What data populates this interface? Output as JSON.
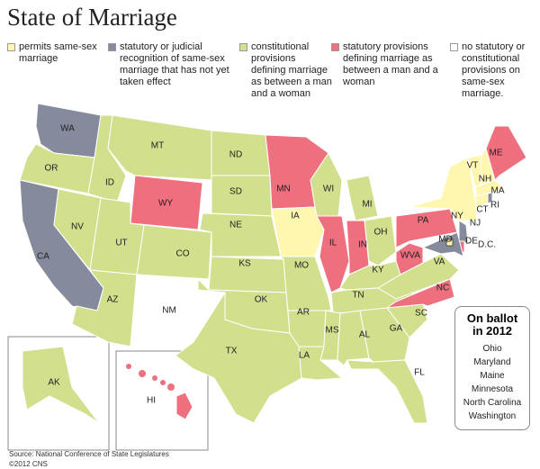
{
  "title": "State of Marriage",
  "legend": [
    {
      "label": "permits same-sex marriage",
      "color": "#fff6b0"
    },
    {
      "label": "statutory or judicial recognition of same-sex marriage that has not yet taken effect",
      "color": "#858b9c"
    },
    {
      "label": "constitutional provisions defining marriage as between a man and a woman",
      "color": "#d2e08d"
    },
    {
      "label": "statutory provisions defining marriage as between a man and a woman",
      "color": "#ee6f7d"
    },
    {
      "label": "no statutory or constitutional provisions on same-sex marriage.",
      "color": "#ffffff"
    }
  ],
  "states": [
    {
      "abbr": "WA",
      "category": 1
    },
    {
      "abbr": "OR",
      "category": 2
    },
    {
      "abbr": "CA",
      "category": 1
    },
    {
      "abbr": "NV",
      "category": 2
    },
    {
      "abbr": "ID",
      "category": 2
    },
    {
      "abbr": "MT",
      "category": 2
    },
    {
      "abbr": "WY",
      "category": 3
    },
    {
      "abbr": "UT",
      "category": 2
    },
    {
      "abbr": "CO",
      "category": 2
    },
    {
      "abbr": "AZ",
      "category": 2
    },
    {
      "abbr": "NM",
      "category": 4
    },
    {
      "abbr": "ND",
      "category": 2
    },
    {
      "abbr": "SD",
      "category": 2
    },
    {
      "abbr": "NE",
      "category": 2
    },
    {
      "abbr": "KS",
      "category": 2
    },
    {
      "abbr": "OK",
      "category": 2
    },
    {
      "abbr": "TX",
      "category": 2
    },
    {
      "abbr": "MN",
      "category": 3
    },
    {
      "abbr": "IA",
      "category": 0
    },
    {
      "abbr": "MO",
      "category": 2
    },
    {
      "abbr": "AR",
      "category": 2
    },
    {
      "abbr": "LA",
      "category": 2
    },
    {
      "abbr": "WI",
      "category": 2
    },
    {
      "abbr": "IL",
      "category": 3
    },
    {
      "abbr": "MI",
      "category": 2
    },
    {
      "abbr": "IN",
      "category": 3
    },
    {
      "abbr": "OH",
      "category": 2
    },
    {
      "abbr": "KY",
      "category": 2
    },
    {
      "abbr": "TN",
      "category": 2
    },
    {
      "abbr": "MS",
      "category": 2
    },
    {
      "abbr": "AL",
      "category": 2
    },
    {
      "abbr": "GA",
      "category": 2
    },
    {
      "abbr": "FL",
      "category": 2
    },
    {
      "abbr": "SC",
      "category": 2
    },
    {
      "abbr": "NC",
      "category": 3
    },
    {
      "abbr": "VA",
      "category": 2
    },
    {
      "abbr": "WVA",
      "category": 3
    },
    {
      "abbr": "PA",
      "category": 3
    },
    {
      "abbr": "NY",
      "category": 0
    },
    {
      "abbr": "VT",
      "category": 0
    },
    {
      "abbr": "NH",
      "category": 0
    },
    {
      "abbr": "ME",
      "category": 3
    },
    {
      "abbr": "MA",
      "category": 0
    },
    {
      "abbr": "CT",
      "category": 0
    },
    {
      "abbr": "RI",
      "category": 1
    },
    {
      "abbr": "NJ",
      "category": 1
    },
    {
      "abbr": "DE",
      "category": 3
    },
    {
      "abbr": "MD",
      "category": 1
    },
    {
      "abbr": "D.C.",
      "category": 0
    },
    {
      "abbr": "AK",
      "category": 2
    },
    {
      "abbr": "HI",
      "category": 3
    }
  ],
  "ballot": {
    "title": "On ballot in 2012",
    "items": [
      "Ohio",
      "Maryland",
      "Maine",
      "Minnesota",
      "North Carolina",
      "Washington"
    ]
  },
  "source": "Source: National Conference of State Legislatures",
  "copyright": "©2012 CNS"
}
